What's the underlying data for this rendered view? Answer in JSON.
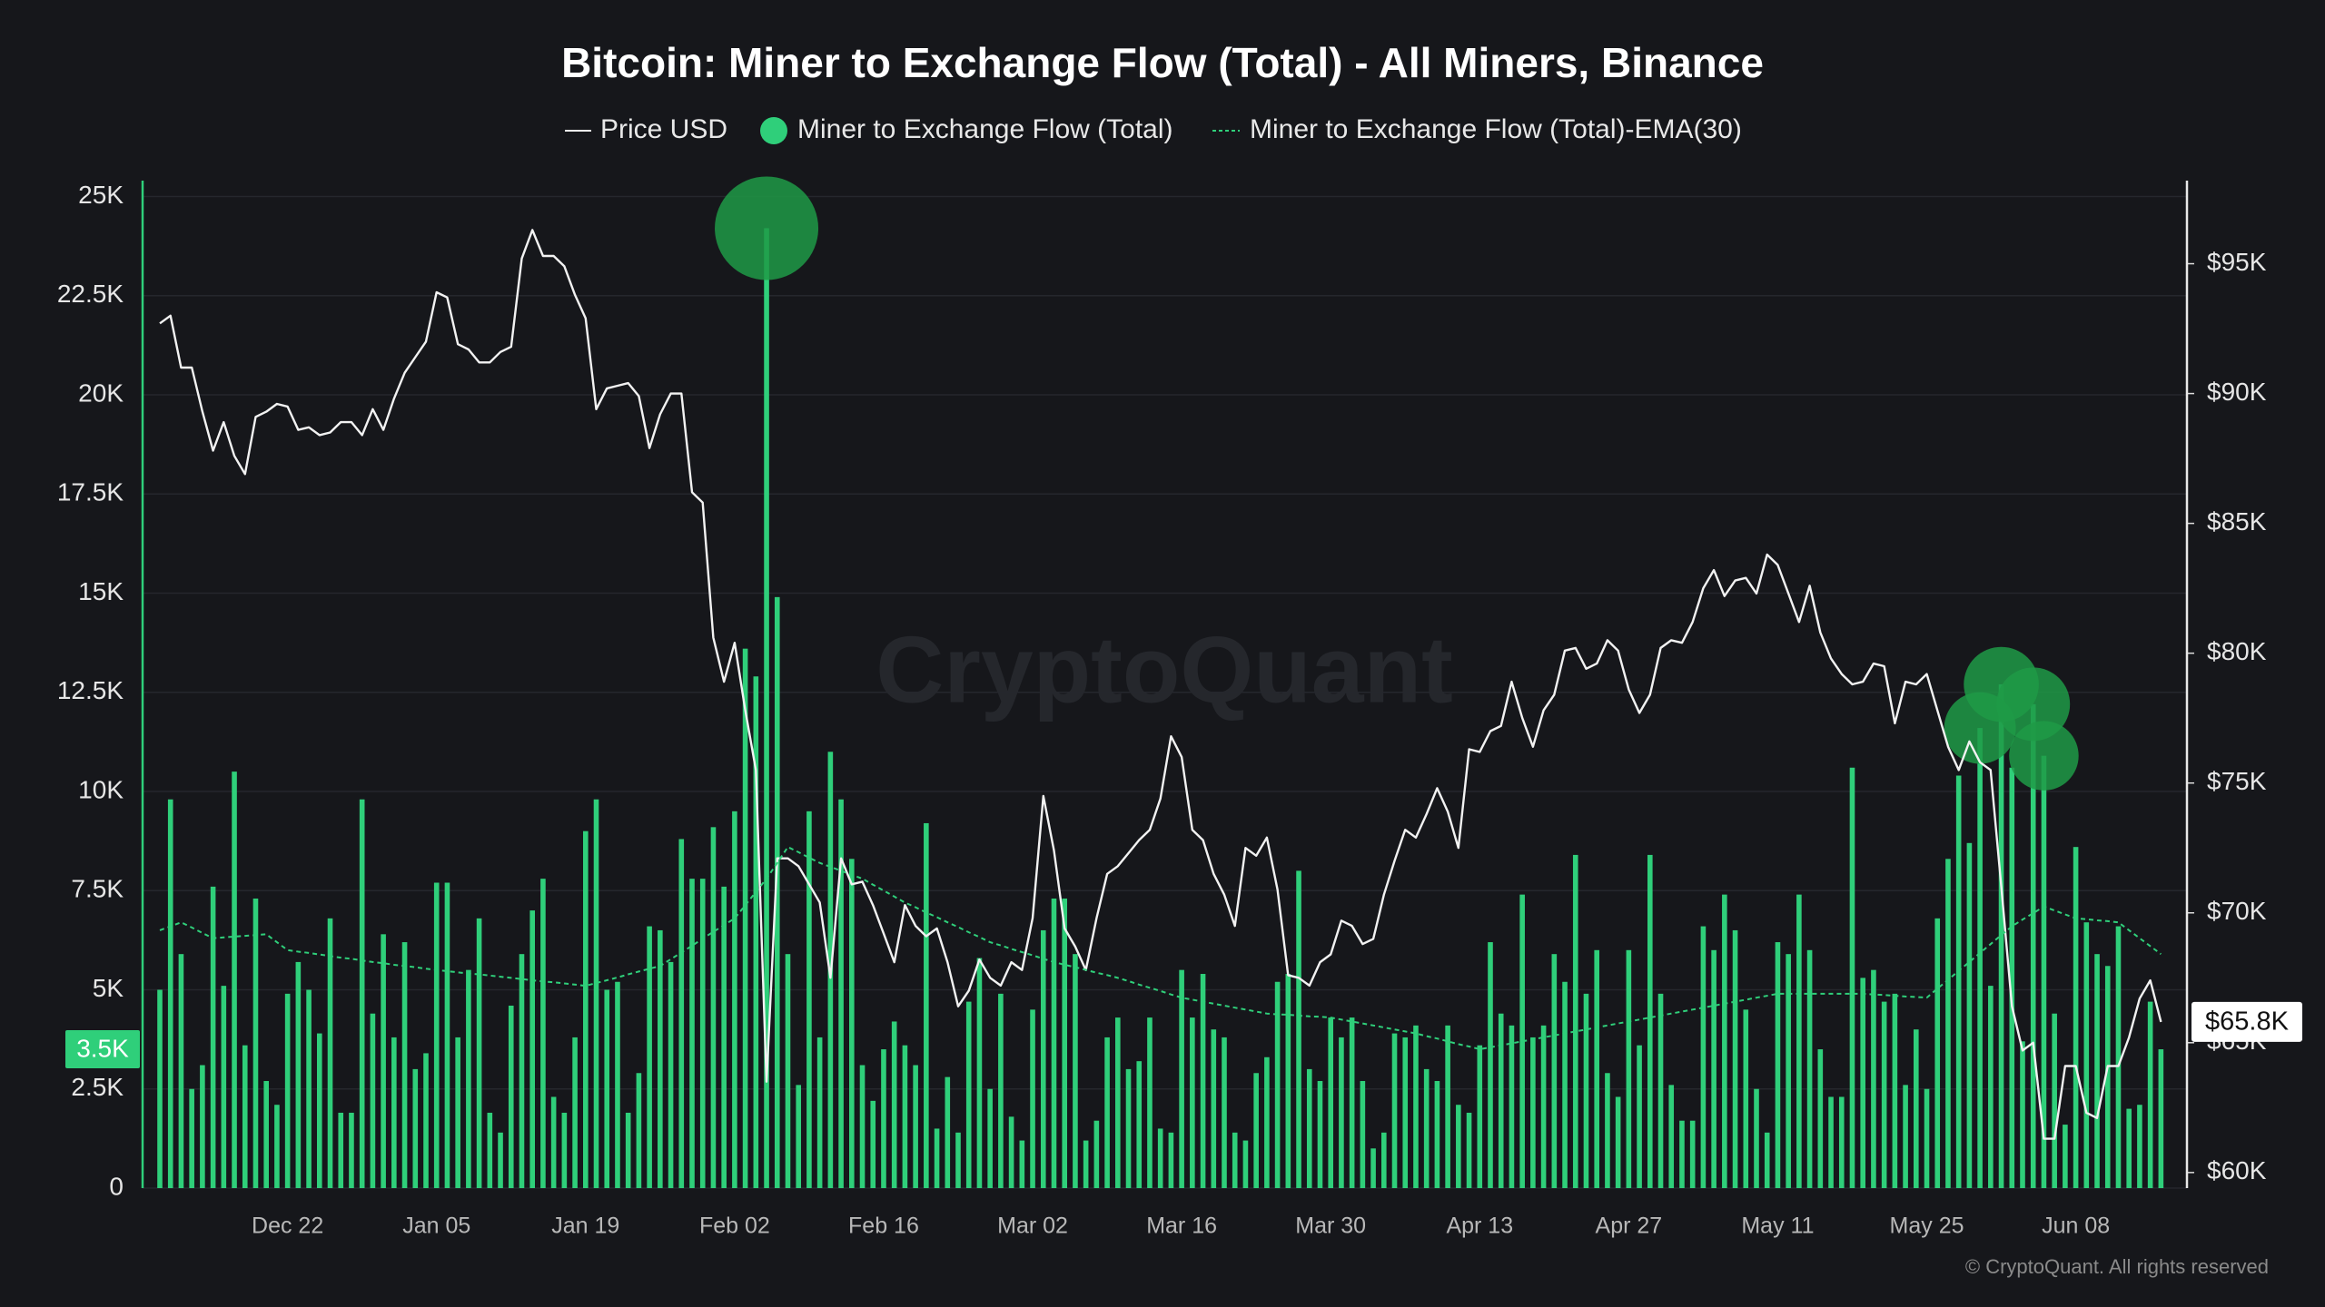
{
  "chart_data": {
    "type": "bar",
    "title": "Bitcoin: Miner to Exchange Flow (Total) - All Miners, Binance",
    "watermark": "CryptoQuant",
    "footer": "© CryptoQuant. All rights reserved",
    "categories": [
      null,
      null,
      null,
      null,
      null,
      null,
      null,
      null,
      null,
      null,
      null,
      null,
      "Dec 22",
      null,
      null,
      null,
      null,
      null,
      null,
      null,
      null,
      null,
      null,
      null,
      null,
      null,
      "Jan 05",
      null,
      null,
      null,
      null,
      null,
      null,
      null,
      null,
      null,
      null,
      null,
      null,
      null,
      "Jan 19",
      null,
      null,
      null,
      null,
      null,
      null,
      null,
      null,
      null,
      null,
      null,
      null,
      null,
      "Feb 02",
      null,
      null,
      null,
      null,
      null,
      null,
      null,
      null,
      null,
      null,
      null,
      null,
      null,
      "Feb 16",
      null,
      null,
      null,
      null,
      null,
      null,
      null,
      null,
      null,
      null,
      null,
      null,
      null,
      "Mar 02",
      null,
      null,
      null,
      null,
      null,
      null,
      null,
      null,
      null,
      null,
      null,
      null,
      null,
      "Mar 16",
      null,
      null,
      null,
      null,
      null,
      null,
      null,
      null,
      null,
      null,
      null,
      null,
      null,
      "Mar 30",
      null,
      null,
      null,
      null,
      null,
      null,
      null,
      null,
      null,
      null,
      null,
      null,
      null,
      "Apr 13",
      null,
      null,
      null,
      null,
      null,
      null,
      null,
      null,
      null,
      null,
      null,
      null,
      null,
      "Apr 27",
      null,
      null,
      null,
      null,
      null,
      null,
      null,
      null,
      null,
      null,
      null,
      null,
      null,
      "May 11",
      null,
      null,
      null,
      null,
      null,
      null,
      null,
      null,
      null,
      null,
      null,
      null,
      null,
      "May 25",
      null,
      null,
      null,
      null,
      null,
      null,
      null,
      null,
      null,
      null,
      null,
      null,
      null,
      "Jun 08",
      null,
      null,
      null,
      null,
      null,
      null,
      null,
      null
    ],
    "ylim": [
      0,
      25400
    ],
    "yticks": [
      0,
      {
        "value": 2500,
        "label": "2.5K"
      },
      {
        "value": 5000,
        "label": "5K"
      },
      {
        "value": 7500,
        "label": "7.5K"
      },
      {
        "value": 10000,
        "label": "10K"
      },
      {
        "value": 12500,
        "label": "12.5K"
      },
      {
        "value": 15000,
        "label": "15K"
      },
      {
        "value": 17500,
        "label": "17.5K"
      },
      {
        "value": 20000,
        "label": "20K"
      },
      {
        "value": 22500,
        "label": "22.5K"
      },
      {
        "value": 25000,
        "label": "25K"
      }
    ],
    "y2lim": [
      59400,
      98200
    ],
    "y2ticks": [
      {
        "value": 60000,
        "label": "$60K"
      },
      {
        "value": 65000,
        "label": "$65K"
      },
      {
        "value": 70000,
        "label": "$70K"
      },
      {
        "value": 75000,
        "label": "$75K"
      },
      {
        "value": 80000,
        "label": "$80K"
      },
      {
        "value": 85000,
        "label": "$85K"
      },
      {
        "value": 90000,
        "label": "$90K"
      },
      {
        "value": 95000,
        "label": "$95K"
      }
    ],
    "grid": true,
    "series": [
      {
        "name": "Price USD",
        "type": "line",
        "axis": "y2",
        "color": "#f2f2f2",
        "current_label": "$65.8K",
        "values": [
          92700,
          93000,
          91000,
          91000,
          89300,
          87800,
          88900,
          87600,
          86900,
          89100,
          89300,
          89600,
          89500,
          88600,
          88700,
          88400,
          88500,
          88900,
          88900,
          88400,
          89400,
          88600,
          89800,
          90800,
          91400,
          92000,
          93900,
          93700,
          91900,
          91700,
          91200,
          91200,
          91600,
          91800,
          95200,
          96300,
          95300,
          95300,
          94900,
          93800,
          92900,
          89400,
          90200,
          90300,
          90400,
          89900,
          87900,
          89200,
          90000,
          90000,
          86200,
          85800,
          80600,
          78900,
          80400,
          77800,
          75500,
          63500,
          72100,
          72100,
          71800,
          71100,
          70400,
          67500,
          72100,
          71100,
          71200,
          70300,
          69200,
          68100,
          70300,
          69500,
          69100,
          69400,
          68100,
          66400,
          67000,
          68200,
          67500,
          67200,
          68100,
          67800,
          69800,
          74500,
          72400,
          69400,
          68700,
          67800,
          69800,
          71500,
          71800,
          72300,
          72800,
          73200,
          74400,
          76800,
          76000,
          73200,
          72800,
          71500,
          70700,
          69500,
          72500,
          72200,
          72900,
          70900,
          67600,
          67500,
          67200,
          68100,
          68400,
          69700,
          69500,
          68800,
          69000,
          70700,
          72000,
          73200,
          72900,
          73800,
          74800,
          73900,
          72500,
          76300,
          76200,
          77000,
          77200,
          78900,
          77500,
          76400,
          77800,
          78400,
          80100,
          80200,
          79400,
          79600,
          80500,
          80100,
          78600,
          77700,
          78400,
          80200,
          80500,
          80400,
          81200,
          82500,
          83200,
          82200,
          82800,
          82900,
          82300,
          83800,
          83400,
          82300,
          81200,
          82600,
          80800,
          79800,
          79200,
          78800,
          78900,
          79600,
          79500,
          77300,
          78900,
          78800,
          79200,
          77800,
          76400,
          75500,
          76600,
          75800,
          75500,
          71000,
          66400,
          64700,
          65000,
          61300,
          61300,
          64100,
          64100,
          62300,
          62100,
          64100,
          64100,
          65200,
          66700,
          67400,
          65800
        ]
      },
      {
        "name": "Miner to Exchange Flow (Total)",
        "type": "bar",
        "color": "#2fcf7a",
        "highlight_color": "#1f9a47",
        "current_label": "3.5K",
        "highlights": [
          57,
          171,
          173,
          176,
          177
        ],
        "values": [
          5000,
          9800,
          5900,
          2500,
          3100,
          7600,
          5100,
          10500,
          3600,
          7300,
          2700,
          2100,
          4900,
          5700,
          5000,
          3900,
          6800,
          1900,
          1900,
          9800,
          4400,
          6400,
          3800,
          6200,
          3000,
          3400,
          7700,
          7700,
          3800,
          5500,
          6800,
          1900,
          1400,
          4600,
          5900,
          7000,
          7800,
          2300,
          1900,
          3800,
          9000,
          9800,
          5000,
          5200,
          1900,
          2900,
          6600,
          6500,
          5700,
          8800,
          7800,
          7800,
          9100,
          7600,
          9500,
          13600,
          12900,
          24200,
          14900,
          5900,
          2600,
          9500,
          3800,
          11000,
          9800,
          8300,
          3100,
          2200,
          3500,
          4200,
          3600,
          3100,
          9200,
          1500,
          2800,
          1400,
          4700,
          5800,
          2500,
          4900,
          1800,
          1200,
          4500,
          6500,
          7300,
          7300,
          5900,
          1200,
          1700,
          3800,
          4300,
          3000,
          3200,
          4300,
          1500,
          1400,
          5500,
          4300,
          5400,
          4000,
          3800,
          1400,
          1200,
          2900,
          3300,
          5200,
          5400,
          8000,
          3000,
          2700,
          4300,
          3800,
          4300,
          2700,
          1000,
          1400,
          3900,
          3800,
          4100,
          3000,
          2700,
          4100,
          2100,
          1900,
          3600,
          6200,
          4400,
          4100,
          7400,
          3800,
          4100,
          5900,
          5200,
          8400,
          4900,
          6000,
          2900,
          2300,
          6000,
          3600,
          8400,
          4900,
          2600,
          1700,
          1700,
          6600,
          6000,
          7400,
          6500,
          4500,
          2500,
          1400,
          6200,
          5900,
          7400,
          6000,
          3500,
          2300,
          2300,
          10600,
          5300,
          5500,
          4700,
          4900,
          2600,
          4000,
          2500,
          6800,
          8300,
          10400,
          8700,
          11600,
          5100,
          12700,
          10600,
          3700,
          12200,
          10900,
          4400,
          1600,
          8600,
          6700,
          5900,
          5600,
          6600,
          2000,
          2100,
          4700,
          3500
        ]
      },
      {
        "name": "Miner to Exchange Flow (Total)-EMA(30)",
        "type": "line",
        "dashed": true,
        "color": "#2fcf7a",
        "values": [
          6500,
          6600,
          6700,
          6570,
          6430,
          6300,
          6320,
          6340,
          6360,
          6380,
          6400,
          6200,
          6000,
          5960,
          5930,
          5890,
          5850,
          5810,
          5780,
          5740,
          5700,
          5670,
          5630,
          5600,
          5570,
          5530,
          5500,
          5470,
          5440,
          5410,
          5390,
          5360,
          5330,
          5300,
          5270,
          5240,
          5210,
          5190,
          5160,
          5130,
          5100,
          5170,
          5240,
          5310,
          5390,
          5460,
          5530,
          5600,
          5770,
          5940,
          6110,
          6290,
          6460,
          6630,
          6800,
          7130,
          7470,
          7800,
          8200,
          8600,
          8470,
          8330,
          8200,
          8100,
          8000,
          7900,
          7800,
          7650,
          7500,
          7350,
          7200,
          7080,
          6950,
          6830,
          6700,
          6580,
          6450,
          6330,
          6200,
          6120,
          6030,
          5950,
          5870,
          5780,
          5700,
          5630,
          5570,
          5500,
          5430,
          5370,
          5300,
          5220,
          5130,
          5050,
          4970,
          4880,
          4800,
          4750,
          4700,
          4650,
          4600,
          4550,
          4500,
          4450,
          4400,
          4380,
          4370,
          4350,
          4330,
          4320,
          4300,
          4250,
          4200,
          4150,
          4100,
          4050,
          4000,
          3950,
          3900,
          3830,
          3770,
          3700,
          3630,
          3570,
          3500,
          3550,
          3600,
          3650,
          3700,
          3750,
          3800,
          3850,
          3900,
          3950,
          4000,
          4050,
          4100,
          4150,
          4200,
          4250,
          4300,
          4350,
          4400,
          4450,
          4500,
          4550,
          4600,
          4650,
          4700,
          4750,
          4800,
          4850,
          4900,
          4900,
          4900,
          4900,
          4900,
          4900,
          4900,
          4900,
          4900,
          4880,
          4870,
          4850,
          4830,
          4820,
          4800,
          5030,
          5250,
          5480,
          5700,
          5930,
          6150,
          6380,
          6600,
          6770,
          6930,
          7100,
          7000,
          6900,
          6800,
          6780,
          6750,
          6730,
          6700,
          6500,
          6300,
          6100,
          5900
        ]
      }
    ]
  }
}
